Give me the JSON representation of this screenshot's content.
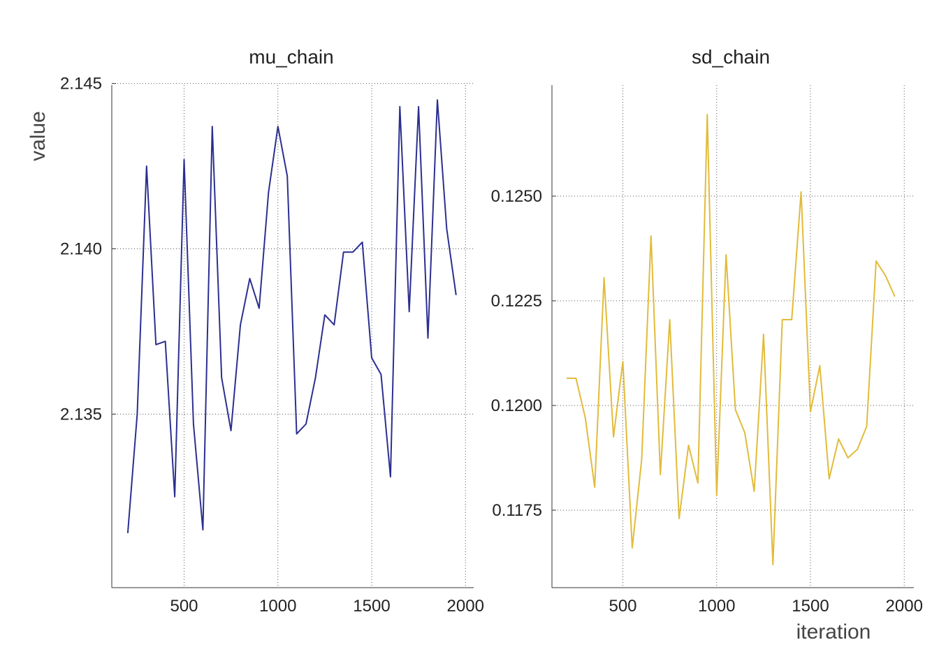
{
  "chart_data": [
    {
      "type": "line",
      "title": "mu_chain",
      "xlabel": "",
      "ylabel": "value",
      "color": "#2b2f8f",
      "xlim": [
        140,
        1980
      ],
      "ylim": [
        2.12975,
        2.14495
      ],
      "xticks": [
        500,
        1000,
        1500,
        2000
      ],
      "yticks": [
        2.135,
        2.14,
        2.145
      ],
      "ytick_labels": [
        "2.135",
        "2.140",
        "2.145"
      ],
      "series": [
        {
          "name": "mu_chain",
          "x": [
            200,
            250,
            300,
            350,
            400,
            450,
            500,
            550,
            600,
            650,
            700,
            750,
            800,
            850,
            900,
            950,
            1000,
            1050,
            1100,
            1150,
            1200,
            1250,
            1300,
            1350,
            1400,
            1450,
            1500,
            1550,
            1600,
            1650,
            1700,
            1750,
            1800,
            1850,
            1900,
            1950
          ],
          "y": [
            2.1314,
            2.135,
            2.1425,
            2.1371,
            2.1372,
            2.1325,
            2.1427,
            2.1347,
            2.1315,
            2.1437,
            2.1361,
            2.1345,
            2.1377,
            2.1391,
            2.1382,
            2.1417,
            2.1437,
            2.1422,
            2.1344,
            2.1347,
            2.1361,
            2.138,
            2.1377,
            2.1399,
            2.1399,
            2.1402,
            2.1367,
            2.1362,
            2.1331,
            2.1443,
            2.1381,
            2.1443,
            2.1373,
            2.1445,
            2.1406,
            2.1386
          ]
        }
      ]
    },
    {
      "type": "line",
      "title": "sd_chain",
      "xlabel": "iteration",
      "ylabel": "",
      "color": "#e2bb3a",
      "xlim": [
        140,
        1980
      ],
      "ylim": [
        0.11565,
        0.12765
      ],
      "xticks": [
        500,
        1000,
        1500,
        2000
      ],
      "yticks": [
        0.1175,
        0.12,
        0.1225,
        0.125
      ],
      "ytick_labels": [
        "0.1175",
        "0.1200",
        "0.1225",
        "0.1250"
      ],
      "series": [
        {
          "name": "sd_chain",
          "x": [
            200,
            250,
            300,
            350,
            400,
            450,
            500,
            550,
            600,
            650,
            700,
            750,
            800,
            850,
            900,
            950,
            1000,
            1050,
            1100,
            1150,
            1200,
            1250,
            1300,
            1350,
            1400,
            1450,
            1500,
            1550,
            1600,
            1650,
            1700,
            1750,
            1800,
            1850,
            1900,
            1950
          ],
          "y": [
            0.12065,
            0.12065,
            0.1197,
            0.11805,
            0.12305,
            0.11925,
            0.12105,
            0.1166,
            0.1187,
            0.12405,
            0.11835,
            0.12205,
            0.1173,
            0.11905,
            0.11815,
            0.12695,
            0.11785,
            0.1236,
            0.1199,
            0.11935,
            0.11795,
            0.1217,
            0.1162,
            0.12205,
            0.12205,
            0.1251,
            0.11985,
            0.12095,
            0.11825,
            0.1192,
            0.11875,
            0.11895,
            0.1195,
            0.12345,
            0.1231,
            0.1226
          ]
        }
      ]
    }
  ]
}
